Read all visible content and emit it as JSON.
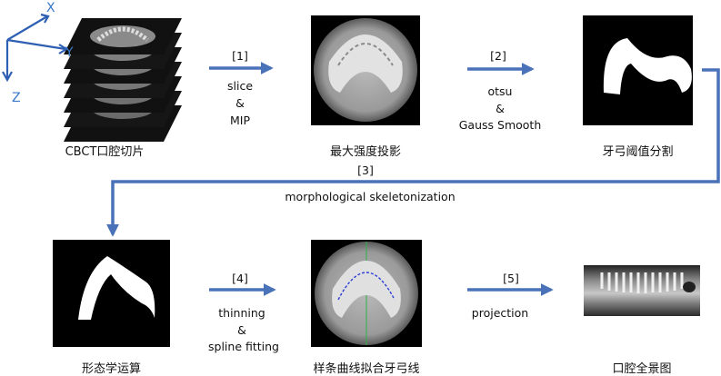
{
  "axes": {
    "x": "X",
    "y": "Y",
    "z": "Z"
  },
  "captions": {
    "slices": "CBCT口腔切片",
    "mip": "最大强度投影",
    "threshold": "牙弓阈值分割",
    "morph": "形态学运算",
    "spline": "样条曲线拟合牙弓线",
    "panorama": "口腔全景图"
  },
  "steps": [
    {
      "num": "[1]",
      "l1": "slice",
      "l2": "&",
      "l3": "MIP"
    },
    {
      "num": "[2]",
      "l1": "otsu",
      "l2": "&",
      "l3": "Gauss Smooth"
    },
    {
      "num": "[3]",
      "l1": "morphological skeletonization"
    },
    {
      "num": "[4]",
      "l1": "thinning",
      "l2": "&",
      "l3": "spline fitting"
    },
    {
      "num": "[5]",
      "l1": "projection"
    }
  ],
  "colors": {
    "arrow": "#4a72b8",
    "axis": "#2f5fb3",
    "axis_label": "#3a78c8"
  }
}
